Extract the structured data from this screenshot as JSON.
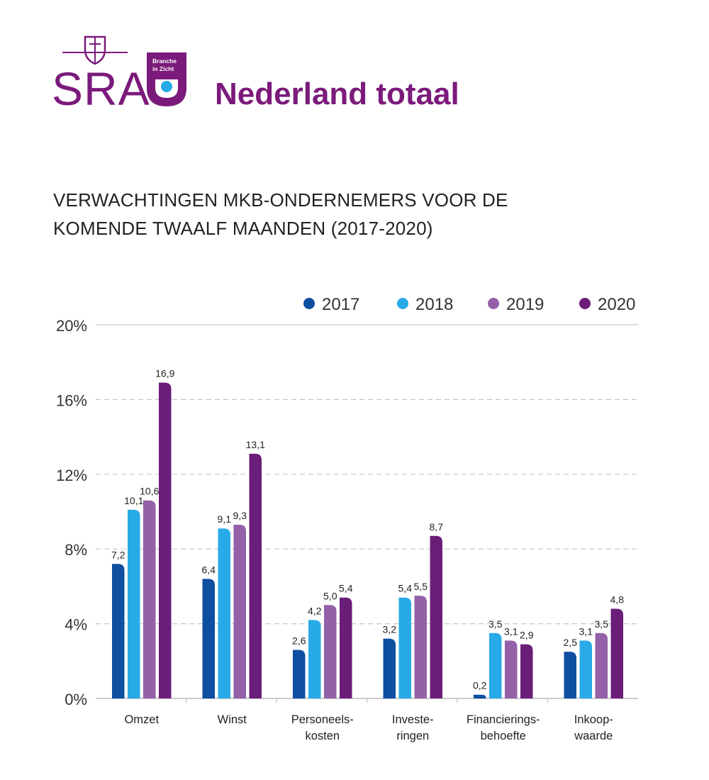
{
  "logo": {
    "text": "SRA",
    "badge_line1": "Branche",
    "badge_line2": "in Zicht"
  },
  "page_title": "Nederland totaal",
  "chart_data": {
    "type": "bar",
    "title_lines": [
      "VERWACHTINGEN MKB-ONDERNEMERS VOOR DE",
      "KOMENDE TWAALF MAANDEN (2017-2020)"
    ],
    "categories": [
      [
        "Omzet"
      ],
      [
        "Winst"
      ],
      [
        "Personeels-",
        "kosten"
      ],
      [
        "Investe-",
        "ringen"
      ],
      [
        "Financierings-",
        "behoefte"
      ],
      [
        "Inkoop-",
        "waarde"
      ]
    ],
    "series": [
      {
        "name": "2017",
        "color": "#0e4fa0",
        "values": [
          7.2,
          6.4,
          2.6,
          3.2,
          0.2,
          2.5
        ],
        "labels": [
          "7,2",
          "6,4",
          "2,6",
          "3,2",
          "0,2",
          "2,5"
        ]
      },
      {
        "name": "2018",
        "color": "#29aae8",
        "values": [
          10.1,
          9.1,
          4.2,
          5.4,
          3.5,
          3.1
        ],
        "labels": [
          "10,1",
          "9,1",
          "4,2",
          "5,4",
          "3,5",
          "3,1"
        ]
      },
      {
        "name": "2019",
        "color": "#9461a8",
        "values": [
          10.6,
          9.3,
          5.0,
          5.5,
          3.1,
          3.5
        ],
        "labels": [
          "10,6",
          "9,3",
          "5,0",
          "5,5",
          "3,1",
          "3,5"
        ]
      },
      {
        "name": "2020",
        "color": "#6a1e78",
        "values": [
          16.9,
          13.1,
          5.4,
          8.7,
          2.9,
          4.8
        ],
        "labels": [
          "16,9",
          "13,1",
          "5,4",
          "8,7",
          "2,9",
          "4,8"
        ]
      }
    ],
    "ylim": [
      0,
      20
    ],
    "y_ticks": [
      0,
      4,
      8,
      12,
      16,
      20
    ],
    "y_tick_labels": [
      "0%",
      "4%",
      "8%",
      "12%",
      "16%",
      "20%"
    ],
    "grid": true,
    "legend_position": "top-right"
  }
}
